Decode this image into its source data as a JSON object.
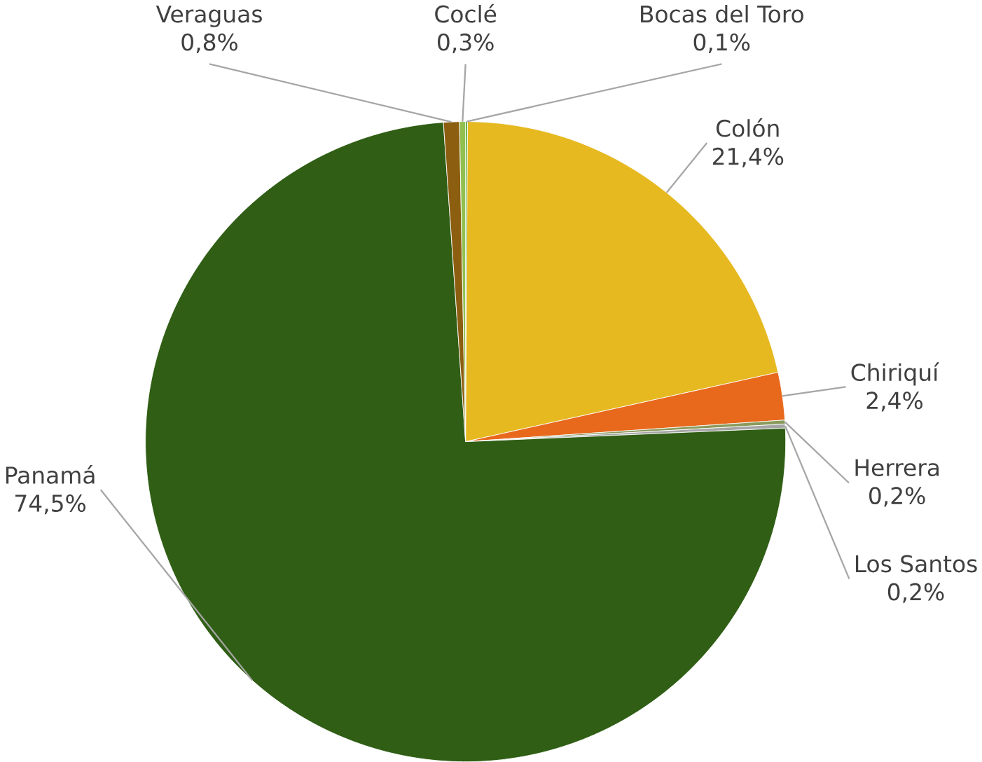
{
  "chart_data": {
    "type": "pie",
    "categories": [
      "Bocas del Toro",
      "Colón",
      "Chiriquí",
      "Herrera",
      "Los Santos",
      "Panamá",
      "Veraguas",
      "Coclé"
    ],
    "values": [
      0.1,
      21.4,
      2.4,
      0.2,
      0.2,
      74.5,
      0.8,
      0.3
    ],
    "value_labels": [
      "0,1%",
      "21,4%",
      "2,4%",
      "0,2%",
      "0,2%",
      "74,5%",
      "0,8%",
      "0,3%"
    ],
    "colors": [
      "#4ea72e",
      "#e6b921",
      "#e8681c",
      "#8a9a5b",
      "#a5a5a5",
      "#2f5e14",
      "#8c5e10",
      "#92c050"
    ]
  }
}
